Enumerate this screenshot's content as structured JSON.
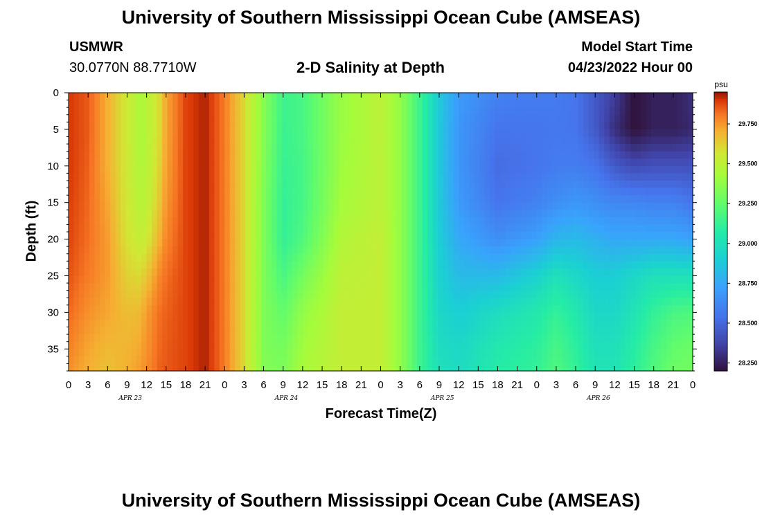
{
  "page": {
    "title": "University of Southern Mississippi Ocean Cube (AMSEAS)",
    "footer_title": "University of Southern Mississippi Ocean Cube (AMSEAS)",
    "station": "USMWR",
    "coords": "30.0770N  88.7710W",
    "subtitle": "2-D Salinity at Depth",
    "model_start_label": "Model Start Time",
    "model_start_value": "04/23/2022 Hour 00"
  },
  "chart_data": {
    "type": "heatmap",
    "title": "2-D Salinity at Depth",
    "xlabel": "Forecast Time(Z)",
    "ylabel": "Depth (ft)",
    "x_tick_labels": [
      "0",
      "3",
      "6",
      "9",
      "12",
      "15",
      "18",
      "21",
      "0",
      "3",
      "6",
      "9",
      "12",
      "15",
      "18",
      "21",
      "0",
      "3",
      "6",
      "9",
      "12",
      "15",
      "18",
      "21",
      "0",
      "3",
      "6",
      "9",
      "12",
      "15",
      "18",
      "21",
      "0"
    ],
    "date_labels": [
      "APR 23",
      "APR 24",
      "APR 25",
      "APR 26"
    ],
    "x_range_hours": [
      0,
      96
    ],
    "y_ticks": [
      0,
      5,
      10,
      15,
      20,
      25,
      30,
      35
    ],
    "y_range_ft": [
      0,
      38
    ],
    "colorbar": {
      "unit": "psu",
      "ticks": [
        "29.750",
        "29.500",
        "29.250",
        "29.000",
        "28.750",
        "28.500",
        "28.250"
      ],
      "tick_values": [
        29.75,
        29.5,
        29.25,
        29.0,
        28.75,
        28.5,
        28.25
      ],
      "range": [
        28.2,
        29.95
      ]
    },
    "hours": [
      0,
      3,
      6,
      9,
      11,
      12,
      14,
      15,
      18,
      21,
      24,
      27,
      30,
      33,
      36,
      42,
      48,
      51,
      54,
      57,
      60,
      66,
      72,
      75,
      78,
      81,
      84,
      87,
      90,
      93,
      96
    ],
    "depths_ft": [
      0,
      5,
      10,
      15,
      20,
      25,
      30,
      35,
      38
    ],
    "salinity": [
      [
        29.9,
        29.9,
        29.9,
        29.89,
        29.88,
        29.86,
        29.83,
        29.79,
        29.76
      ],
      [
        29.85,
        29.85,
        29.84,
        29.83,
        29.82,
        29.8,
        29.76,
        29.72,
        29.7
      ],
      [
        29.7,
        29.7,
        29.7,
        29.72,
        29.74,
        29.74,
        29.72,
        29.68,
        29.66
      ],
      [
        29.55,
        29.55,
        29.55,
        29.56,
        29.58,
        29.62,
        29.67,
        29.69,
        29.7
      ],
      [
        29.45,
        29.45,
        29.46,
        29.48,
        29.52,
        29.6,
        29.68,
        29.72,
        29.74
      ],
      [
        29.48,
        29.48,
        29.48,
        29.5,
        29.55,
        29.65,
        29.74,
        29.76,
        29.77
      ],
      [
        29.6,
        29.6,
        29.62,
        29.65,
        29.7,
        29.78,
        29.82,
        29.83,
        29.84
      ],
      [
        29.72,
        29.72,
        29.73,
        29.75,
        29.78,
        29.82,
        29.84,
        29.85,
        29.85
      ],
      [
        29.88,
        29.88,
        29.88,
        29.88,
        29.88,
        29.88,
        29.88,
        29.88,
        29.88
      ],
      [
        29.93,
        29.93,
        29.93,
        29.93,
        29.93,
        29.93,
        29.93,
        29.93,
        29.93
      ],
      [
        29.8,
        29.8,
        29.8,
        29.8,
        29.8,
        29.8,
        29.8,
        29.8,
        29.8
      ],
      [
        29.6,
        29.6,
        29.6,
        29.6,
        29.6,
        29.6,
        29.6,
        29.6,
        29.6
      ],
      [
        29.35,
        29.35,
        29.34,
        29.33,
        29.33,
        29.33,
        29.33,
        29.33,
        29.34
      ],
      [
        29.15,
        29.14,
        29.13,
        29.12,
        29.12,
        29.18,
        29.25,
        29.3,
        29.32
      ],
      [
        29.18,
        29.18,
        29.17,
        29.17,
        29.2,
        29.3,
        29.38,
        29.42,
        29.44
      ],
      [
        29.4,
        29.4,
        29.41,
        29.43,
        29.47,
        29.5,
        29.52,
        29.52,
        29.52
      ],
      [
        29.5,
        29.5,
        29.5,
        29.5,
        29.52,
        29.52,
        29.52,
        29.52,
        29.52
      ],
      [
        29.38,
        29.38,
        29.38,
        29.38,
        29.38,
        29.38,
        29.38,
        29.38,
        29.38
      ],
      [
        29.15,
        29.15,
        29.15,
        29.15,
        29.15,
        29.15,
        29.15,
        29.15,
        29.15
      ],
      [
        28.88,
        28.88,
        28.88,
        28.88,
        28.9,
        28.92,
        28.95,
        28.98,
        29.0
      ],
      [
        28.7,
        28.68,
        28.68,
        28.7,
        28.75,
        28.82,
        28.9,
        28.95,
        28.97
      ],
      [
        28.6,
        28.55,
        28.52,
        28.55,
        28.65,
        28.82,
        28.98,
        29.05,
        29.07
      ],
      [
        28.58,
        28.55,
        28.55,
        28.6,
        28.72,
        28.92,
        29.05,
        29.1,
        29.12
      ],
      [
        28.58,
        28.56,
        28.58,
        28.65,
        28.8,
        29.0,
        29.12,
        29.18,
        29.2
      ],
      [
        28.55,
        28.55,
        28.58,
        28.68,
        28.82,
        28.95,
        29.05,
        29.1,
        29.12
      ],
      [
        28.45,
        28.45,
        28.55,
        28.65,
        28.78,
        28.9,
        28.95,
        29.0,
        29.02
      ],
      [
        28.35,
        28.3,
        28.45,
        28.62,
        28.75,
        28.9,
        28.95,
        29.0,
        29.02
      ],
      [
        28.2,
        28.2,
        28.4,
        28.62,
        28.75,
        28.95,
        29.02,
        29.08,
        29.1
      ],
      [
        28.25,
        28.25,
        28.42,
        28.6,
        28.75,
        29.0,
        29.12,
        29.18,
        29.2
      ],
      [
        28.25,
        28.25,
        28.42,
        28.6,
        28.75,
        29.0,
        29.18,
        29.25,
        29.28
      ],
      [
        28.3,
        28.28,
        28.42,
        28.55,
        28.72,
        29.0,
        29.2,
        29.28,
        29.3
      ]
    ]
  }
}
